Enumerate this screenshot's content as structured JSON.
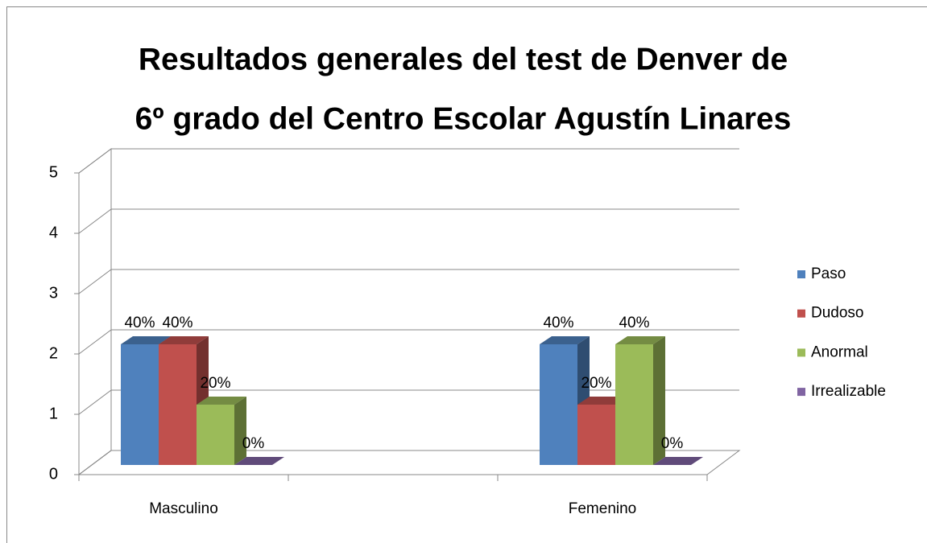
{
  "chart_data": {
    "type": "bar3d",
    "title": [
      "Resultados generales del test de Denver de",
      "6º grado del Centro Escolar Agustín Linares"
    ],
    "categories": [
      "Masculino",
      "Femenino"
    ],
    "series": [
      {
        "name": "Paso",
        "color": "#4f81bd",
        "values": [
          2,
          2
        ],
        "value_labels": [
          "40%",
          "40%"
        ]
      },
      {
        "name": "Dudoso",
        "color": "#c0504d",
        "values": [
          2,
          1
        ],
        "value_labels": [
          "40%",
          "20%"
        ]
      },
      {
        "name": "Anormal",
        "color": "#9bbb59",
        "values": [
          1,
          2
        ],
        "value_labels": [
          "20%",
          "40%"
        ]
      },
      {
        "name": "Irrealizable",
        "color": "#8064a2",
        "values": [
          0,
          0
        ],
        "value_labels": [
          "0%",
          "0%"
        ]
      }
    ],
    "ylim": [
      0,
      5
    ],
    "yticks": [
      0,
      1,
      2,
      3,
      4,
      5
    ],
    "grid": true,
    "legend": "right"
  }
}
